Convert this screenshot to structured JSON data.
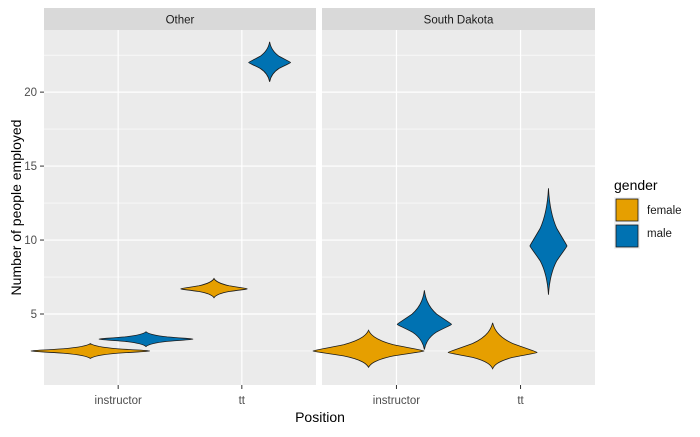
{
  "chart_data": {
    "type": "violin",
    "xlabel": "Position",
    "ylabel": "Number of people employed",
    "ylim": [
      0.2,
      24.2
    ],
    "y_ticks": [
      5,
      10,
      15,
      20
    ],
    "categories": [
      "instructor",
      "tt"
    ],
    "facets": [
      {
        "name": "Other",
        "violins": [
          {
            "category": "instructor",
            "group": "female",
            "center": 2.5,
            "min": 2.0,
            "max": 3.0,
            "half_width": 0.48
          },
          {
            "category": "instructor",
            "group": "male",
            "center": 3.3,
            "min": 2.8,
            "max": 3.8,
            "half_width": 0.38
          },
          {
            "category": "tt",
            "group": "female",
            "center": 6.7,
            "min": 6.1,
            "max": 7.4,
            "half_width": 0.27
          },
          {
            "category": "tt",
            "group": "male",
            "center": 22.0,
            "min": 20.7,
            "max": 23.4,
            "half_width": 0.17
          }
        ]
      },
      {
        "name": "South Dakota",
        "violins": [
          {
            "category": "instructor",
            "group": "female",
            "center": 2.5,
            "min": 1.4,
            "max": 3.9,
            "half_width": 0.45
          },
          {
            "category": "instructor",
            "group": "male",
            "center": 4.3,
            "min": 2.6,
            "max": 6.6,
            "half_width": 0.22
          },
          {
            "category": "tt",
            "group": "female",
            "center": 2.4,
            "min": 1.3,
            "max": 4.4,
            "half_width": 0.36
          },
          {
            "category": "tt",
            "group": "male",
            "center": 9.6,
            "min": 6.3,
            "max": 13.5,
            "half_width": 0.15
          }
        ]
      }
    ],
    "legend": {
      "title": "gender",
      "position": "right",
      "entries": [
        {
          "label": "female",
          "color": "#E69F00"
        },
        {
          "label": "male",
          "color": "#0072B2"
        }
      ]
    },
    "grid": true
  }
}
